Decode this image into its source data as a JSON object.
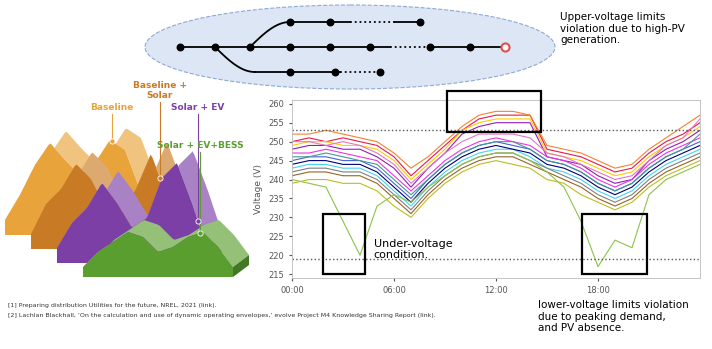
{
  "scenarios": [
    {
      "label": "Baseline",
      "color": "#e8a33a"
    },
    {
      "label": "Baseline +\nSolar",
      "color": "#c97a24"
    },
    {
      "label": "Solar + EV",
      "color": "#7b3fa6"
    },
    {
      "label": "Solar + EV+BESS",
      "color": "#5a9e2f"
    }
  ],
  "chart_data": {
    "type": "line",
    "ylabel": "Voltage (V)",
    "x": [
      0,
      1,
      2,
      3,
      4,
      5,
      6,
      7,
      8,
      9,
      10,
      11,
      12,
      13,
      14,
      15,
      16,
      17,
      18,
      19,
      20,
      21,
      22,
      23,
      24
    ],
    "xlim": [
      0,
      24
    ],
    "xticks": [
      {
        "value": 0,
        "label": "00:00"
      },
      {
        "value": 6,
        "label": "06:00"
      },
      {
        "value": 12,
        "label": "12:00"
      },
      {
        "value": 18,
        "label": "18:00"
      }
    ],
    "ylim": [
      214,
      261
    ],
    "yticks": [
      215,
      220,
      225,
      230,
      235,
      240,
      245,
      250,
      255,
      260
    ],
    "limits": [
      253,
      219
    ],
    "series": [
      {
        "color": "#e6194b",
        "values": [
          250,
          251,
          250,
          251,
          250,
          249,
          246,
          241,
          245,
          249,
          253,
          256,
          257,
          257,
          257,
          248,
          247,
          246,
          244,
          242,
          243,
          247,
          250,
          252,
          255
        ]
      },
      {
        "color": "#f58231",
        "values": [
          252,
          252,
          253,
          252,
          251,
          250,
          247,
          243,
          246,
          250,
          254,
          257,
          258,
          258,
          257,
          249,
          248,
          247,
          245,
          243,
          244,
          248,
          251,
          254,
          257
        ]
      },
      {
        "color": "#ffcc00",
        "values": [
          249,
          250,
          250,
          249,
          249,
          248,
          245,
          240,
          244,
          248,
          253,
          255,
          256,
          256,
          256,
          247,
          246,
          245,
          243,
          241,
          242,
          246,
          249,
          251,
          254
        ]
      },
      {
        "color": "#911eb4",
        "values": [
          248,
          249,
          249,
          248,
          248,
          246,
          243,
          238,
          243,
          247,
          252,
          254,
          255,
          255,
          255,
          246,
          245,
          244,
          241,
          239,
          240,
          245,
          248,
          250,
          253
        ]
      },
      {
        "color": "#4363d8",
        "values": [
          245,
          246,
          246,
          245,
          245,
          243,
          239,
          235,
          240,
          244,
          247,
          249,
          250,
          249,
          248,
          245,
          244,
          242,
          239,
          237,
          239,
          243,
          246,
          248,
          250
        ]
      },
      {
        "color": "#42d4f4",
        "values": [
          243,
          244,
          244,
          243,
          243,
          241,
          237,
          233,
          238,
          242,
          245,
          247,
          248,
          248,
          246,
          243,
          242,
          240,
          237,
          235,
          237,
          241,
          244,
          246,
          248
        ]
      },
      {
        "color": "#f032e6",
        "values": [
          247,
          247,
          248,
          247,
          246,
          245,
          241,
          237,
          241,
          245,
          248,
          250,
          251,
          250,
          249,
          246,
          245,
          243,
          240,
          238,
          240,
          244,
          247,
          249,
          251
        ]
      },
      {
        "color": "#9a6324",
        "values": [
          241,
          242,
          242,
          241,
          241,
          239,
          235,
          231,
          236,
          240,
          243,
          245,
          246,
          246,
          244,
          242,
          240,
          238,
          235,
          233,
          235,
          239,
          242,
          244,
          246
        ]
      },
      {
        "color": "#000075",
        "values": [
          244,
          245,
          245,
          244,
          244,
          242,
          238,
          234,
          239,
          243,
          246,
          248,
          249,
          248,
          247,
          244,
          243,
          241,
          238,
          236,
          238,
          242,
          245,
          247,
          249
        ]
      },
      {
        "color": "#469990",
        "values": [
          246,
          246,
          247,
          246,
          245,
          244,
          240,
          236,
          240,
          244,
          247,
          249,
          250,
          250,
          248,
          245,
          244,
          242,
          239,
          237,
          239,
          243,
          246,
          248,
          252
        ]
      },
      {
        "color": "#808080",
        "values": [
          242,
          243,
          243,
          242,
          242,
          240,
          236,
          232,
          237,
          241,
          244,
          246,
          247,
          247,
          245,
          243,
          241,
          239,
          236,
          234,
          236,
          240,
          243,
          245,
          247
        ]
      },
      {
        "color": "#e377c2",
        "values": [
          250,
          250,
          249,
          250,
          249,
          247,
          244,
          239,
          243,
          247,
          250,
          252,
          252,
          252,
          251,
          247,
          246,
          244,
          242,
          240,
          241,
          245,
          249,
          251,
          256
        ]
      },
      {
        "color": "#8bc34a",
        "values": [
          240,
          239,
          238,
          229,
          220,
          233,
          236,
          234,
          238,
          241,
          244,
          246,
          247,
          247,
          245,
          242,
          238,
          229,
          217,
          224,
          222,
          236,
          240,
          242,
          244
        ]
      },
      {
        "color": "#bcbd22",
        "values": [
          239,
          240,
          240,
          239,
          239,
          237,
          233,
          230,
          235,
          239,
          242,
          244,
          245,
          244,
          243,
          240,
          239,
          236,
          234,
          232,
          234,
          238,
          241,
          243,
          245
        ]
      }
    ],
    "annotations": [
      "Upper-voltage limits\nviolation due to high-PV\ngeneration.",
      "Under-voltage\ncondition.",
      "lower-voltage limits violation\ndue to peaking demand,\nand PV absence."
    ]
  },
  "references": [
    "[1] Preparing distribution Utilities for the future, NREL, 2021 (link).",
    "[2] Lachlan Blackhall, ‘On the calculation and use of dynamic operating envelopes,’ evolve Project M4 Knowledge Sharing Report (link)."
  ]
}
